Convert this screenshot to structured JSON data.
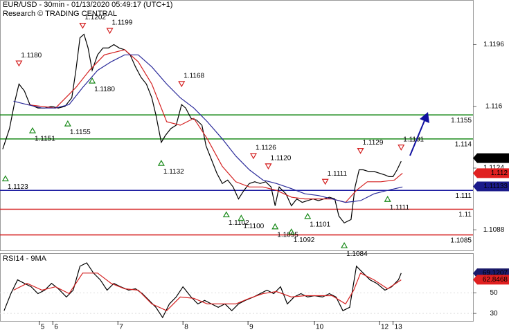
{
  "chart_data": [
    {
      "type": "line",
      "title": "EUR/USD - 30min - 01/13/2020 05:49:17 (UTC+1)",
      "subtitle": "Research © TRADING CENTRAL",
      "xlim": [
        0,
        349
      ],
      "ylim": [
        1.1076,
        1.1222
      ],
      "yticks": [
        1.1088,
        1.1124,
        1.116,
        1.1196
      ],
      "series": [
        {
          "color": "#000000",
          "x": [
            2,
            7,
            11,
            14,
            18,
            22,
            28,
            33,
            38,
            43,
            48,
            53,
            56,
            59,
            62,
            65,
            68,
            72,
            76,
            80,
            84,
            88,
            92,
            96,
            100,
            104,
            108,
            112,
            115,
            119,
            122,
            126,
            130,
            134,
            137,
            141,
            145,
            149,
            152,
            156,
            160,
            164,
            168,
            172,
            176,
            180,
            184,
            188,
            192,
            196,
            200,
            203,
            206,
            211,
            215,
            219,
            223,
            227,
            231,
            235,
            239,
            243,
            247,
            250,
            254,
            259,
            262,
            265,
            268,
            272,
            276,
            280,
            284,
            287,
            290,
            293,
            296
          ],
          "values": [
            1.1135,
            1.1147,
            1.1163,
            1.1173,
            1.1169,
            1.1161,
            1.1159,
            1.1159,
            1.116,
            1.1159,
            1.116,
            1.1165,
            1.1181,
            1.12,
            1.1202,
            1.1194,
            1.1181,
            1.119,
            1.1194,
            1.1194,
            1.1196,
            1.1194,
            1.1193,
            1.119,
            1.1183,
            1.1177,
            1.1173,
            1.1165,
            1.1155,
            1.1139,
            1.1143,
            1.1147,
            1.1149,
            1.1161,
            1.1159,
            1.1153,
            1.1152,
            1.1149,
            1.1137,
            1.1129,
            1.1121,
            1.1115,
            1.1117,
            1.1113,
            1.1106,
            1.1111,
            1.1115,
            1.1116,
            1.1115,
            1.1116,
            1.1113,
            1.1102,
            1.1113,
            1.1109,
            1.1102,
            1.1106,
            1.1104,
            1.1105,
            1.1106,
            1.1105,
            1.1106,
            1.1107,
            1.1106,
            1.1096,
            1.1092,
            1.1094,
            1.1113,
            1.1123,
            1.1123,
            1.1122,
            1.1122,
            1.1121,
            1.112,
            1.1119,
            1.1119,
            1.1123,
            1.1128
          ]
        },
        {
          "color": "#d42020",
          "x": [
            20,
            41,
            56,
            66,
            77,
            92,
            102,
            112,
            123,
            133,
            143,
            153,
            164,
            174,
            184,
            194,
            204,
            215,
            225,
            235,
            245,
            255,
            263,
            271,
            281,
            291,
            297
          ],
          "values": [
            1.1161,
            1.1159,
            1.1171,
            1.1181,
            1.119,
            1.1193,
            1.1186,
            1.1173,
            1.1151,
            1.1149,
            1.1153,
            1.1141,
            1.1125,
            1.1116,
            1.1113,
            1.1113,
            1.1111,
            1.1107,
            1.1106,
            1.1106,
            1.1106,
            1.1104,
            1.1111,
            1.1116,
            1.1116,
            1.1117,
            1.1121
          ]
        },
        {
          "color": "#2a2a9a",
          "x": [
            10,
            20,
            31,
            41,
            51,
            61,
            72,
            82,
            92,
            102,
            112,
            123,
            133,
            143,
            153,
            164,
            174,
            184,
            194,
            204,
            215,
            225,
            235,
            245,
            255,
            266,
            276,
            286,
            297
          ],
          "values": [
            1.1163,
            1.1161,
            1.1159,
            1.1159,
            1.1161,
            1.1171,
            1.1181,
            1.1186,
            1.119,
            1.119,
            1.1183,
            1.1173,
            1.1165,
            1.1159,
            1.1151,
            1.1141,
            1.1131,
            1.1123,
            1.1117,
            1.1115,
            1.1112,
            1.1109,
            1.1108,
            1.1106,
            1.1104,
            1.1105,
            1.1109,
            1.1111,
            1.1113
          ]
        }
      ],
      "levels": [
        {
          "value": 1.1155,
          "label": "1.1155",
          "color": "#1a8a1a"
        },
        {
          "value": 1.1141,
          "label": "1.114",
          "color": "#1a8a1a"
        },
        {
          "value": 1.1111,
          "label": "1.111",
          "color": "#1a1aa0"
        },
        {
          "value": 1.11,
          "label": "1.11",
          "color": "#d42020"
        },
        {
          "value": 1.1085,
          "label": "1.1085",
          "color": "#d42020"
        }
      ],
      "price_tags": [
        {
          "value": 1.11298,
          "label": "1.11298",
          "color": "#000000"
        },
        {
          "value": 1.1121,
          "label": "1.112",
          "color": "#e02020"
        },
        {
          "value": 1.11133,
          "label": "1.11133",
          "color": "#1a1a8a"
        }
      ],
      "fractals": [
        {
          "x": 14,
          "value": 1.118,
          "label": "1.1180",
          "dir": "down"
        },
        {
          "x": 61,
          "value": 1.1202,
          "label": "1.1202",
          "dir": "down"
        },
        {
          "x": 81,
          "value": 1.1199,
          "label": "1.1199",
          "dir": "down"
        },
        {
          "x": 134,
          "value": 1.1168,
          "label": "1.1168",
          "dir": "down"
        },
        {
          "x": 187,
          "value": 1.1126,
          "label": "1.1126",
          "dir": "down"
        },
        {
          "x": 198,
          "value": 1.112,
          "label": "1.1120",
          "dir": "down"
        },
        {
          "x": 240,
          "value": 1.1111,
          "label": "1.1111",
          "dir": "down"
        },
        {
          "x": 266,
          "value": 1.1129,
          "label": "1.1129",
          "dir": "down"
        },
        {
          "x": 296,
          "value": 1.1131,
          "label": "1.1131",
          "dir": "down"
        },
        {
          "x": 4,
          "value": 1.1123,
          "label": "1.1123",
          "dir": "up"
        },
        {
          "x": 24,
          "value": 1.1151,
          "label": "1.1151",
          "dir": "up"
        },
        {
          "x": 50,
          "value": 1.1155,
          "label": "1.1155",
          "dir": "up"
        },
        {
          "x": 68,
          "value": 1.118,
          "label": "1.1180",
          "dir": "up"
        },
        {
          "x": 119,
          "value": 1.1132,
          "label": "1.1132",
          "dir": "up"
        },
        {
          "x": 167,
          "value": 1.1102,
          "label": "1.1102",
          "dir": "up"
        },
        {
          "x": 178,
          "value": 1.11,
          "label": "1.1100",
          "dir": "up"
        },
        {
          "x": 203,
          "value": 1.1095,
          "label": "1.1095",
          "dir": "up"
        },
        {
          "x": 215,
          "value": 1.1092,
          "label": "1.1092",
          "dir": "up"
        },
        {
          "x": 227,
          "value": 1.1101,
          "label": "1.1101",
          "dir": "up"
        },
        {
          "x": 254,
          "value": 1.1084,
          "label": "1.1084",
          "dir": "up"
        },
        {
          "x": 286,
          "value": 1.1111,
          "label": "1.1111",
          "dir": "up"
        }
      ]
    },
    {
      "type": "line",
      "title": "RSI14 - 9MA",
      "xlim": [
        0,
        349
      ],
      "ylim": [
        22.7,
        88.7
      ],
      "yticks": [
        30,
        50
      ],
      "xticks": [
        {
          "value": 29,
          "label": "5"
        },
        {
          "value": 39,
          "label": "6"
        },
        {
          "value": 87,
          "label": "7"
        },
        {
          "value": 135,
          "label": "8"
        },
        {
          "value": 183,
          "label": "9"
        },
        {
          "value": 232,
          "label": "10"
        },
        {
          "value": 280,
          "label": "12"
        },
        {
          "value": 290,
          "label": "13"
        }
      ],
      "series": [
        {
          "color": "#000000",
          "x": [
            3,
            8,
            13,
            18,
            23,
            28,
            33,
            38,
            43,
            49,
            54,
            59,
            64,
            69,
            74,
            79,
            84,
            89,
            95,
            100,
            105,
            110,
            115,
            120,
            125,
            130,
            135,
            141,
            146,
            151,
            156,
            161,
            166,
            171,
            176,
            181,
            187,
            192,
            197,
            202,
            207,
            212,
            217,
            222,
            227,
            232,
            238,
            243,
            248,
            253,
            258,
            263,
            268,
            273,
            278,
            284,
            289,
            294,
            296
          ],
          "values": [
            32.7,
            49.3,
            62.7,
            59.3,
            56,
            49.3,
            52.7,
            59.3,
            54,
            46,
            52.7,
            76,
            79.3,
            69.3,
            62.7,
            52.7,
            59.3,
            56,
            52.7,
            54,
            49.3,
            42.7,
            36,
            26,
            39.3,
            46,
            56,
            46,
            39.3,
            42.7,
            39.3,
            36,
            39.3,
            32.7,
            39.3,
            42.7,
            46,
            49.3,
            52.7,
            49.3,
            56,
            39.3,
            46,
            49.3,
            46,
            47.3,
            46,
            49.3,
            46,
            32.7,
            36,
            76,
            69.3,
            62.7,
            59.3,
            52.7,
            56,
            62.7,
            69.3
          ]
        },
        {
          "color": "#d42020",
          "x": [
            10,
            20,
            31,
            41,
            51,
            61,
            72,
            82,
            92,
            102,
            112,
            123,
            133,
            143,
            153,
            164,
            174,
            184,
            194,
            204,
            215,
            225,
            235,
            245,
            255,
            261,
            266,
            276,
            286,
            296
          ],
          "values": [
            52.7,
            59.3,
            52.7,
            56,
            49.3,
            69.3,
            69.3,
            59.3,
            54,
            52.7,
            39.3,
            32.7,
            46,
            44.7,
            39.3,
            39.3,
            39.3,
            44.7,
            49.3,
            51.3,
            46,
            47.3,
            47.3,
            47.3,
            39.3,
            52.7,
            69.3,
            62.7,
            54,
            62.7
          ]
        }
      ],
      "value_tags": [
        {
          "value": 69.1207,
          "label": "69.1207",
          "color": "#1a1a6a"
        },
        {
          "value": 62.8468,
          "label": "62.8468",
          "color": "#e02020"
        }
      ]
    }
  ]
}
